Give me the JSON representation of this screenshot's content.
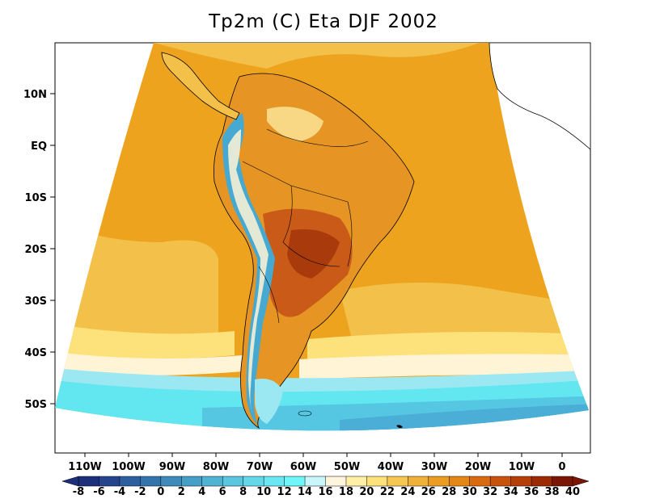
{
  "title": "Tp2m (C) Eta DJF 2002",
  "lat_labels": [
    "10N",
    "EQ",
    "10S",
    "20S",
    "30S",
    "40S",
    "50S"
  ],
  "lon_labels": [
    "110W",
    "100W",
    "90W",
    "80W",
    "70W",
    "60W",
    "50W",
    "40W",
    "30W",
    "20W",
    "10W",
    "0"
  ],
  "colorbar": {
    "labels": [
      "-8",
      "-6",
      "-4",
      "-2",
      "0",
      "2",
      "4",
      "6",
      "8",
      "10",
      "12",
      "14",
      "16",
      "18",
      "20",
      "22",
      "24",
      "26",
      "28",
      "30",
      "32",
      "34",
      "36",
      "38",
      "40"
    ],
    "colors": [
      "#1c2f7a",
      "#24458e",
      "#2c5ea0",
      "#3474ad",
      "#3d8abb",
      "#459fc8",
      "#4fb4d4",
      "#5ac6df",
      "#62d8e8",
      "#67e8f2",
      "#6ff5fa",
      "#c9f6fb",
      "#fff4de",
      "#fff0a6",
      "#fde17a",
      "#f6c852",
      "#efb138",
      "#eb9c22",
      "#e48716",
      "#d86b10",
      "#c9520c",
      "#b63e08",
      "#9c2a05",
      "#7a1603"
    ]
  },
  "legend_colors": {
    "ocean_tropical": "#eda31d",
    "ocean_mid": "#f3c04a",
    "ocean_cool": "#fff4d6",
    "ocean_cold": "#55c7e3",
    "land_hot": "#c95a17",
    "land_warm": "#e69424",
    "andes_cold": "#45a9d1"
  }
}
